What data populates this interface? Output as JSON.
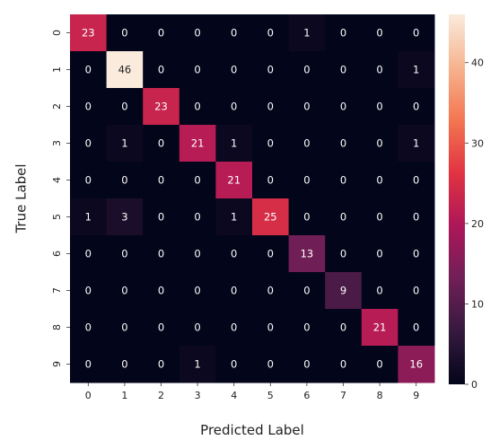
{
  "chart_data": {
    "type": "heatmap",
    "title": "",
    "xlabel": "Predicted Label",
    "ylabel": "True Label",
    "x_categories": [
      "0",
      "1",
      "2",
      "3",
      "4",
      "5",
      "6",
      "7",
      "8",
      "9"
    ],
    "y_categories": [
      "0",
      "1",
      "2",
      "3",
      "4",
      "5",
      "6",
      "7",
      "8",
      "9"
    ],
    "values": [
      [
        23,
        0,
        0,
        0,
        0,
        0,
        1,
        0,
        0,
        0
      ],
      [
        0,
        46,
        0,
        0,
        0,
        0,
        0,
        0,
        0,
        1
      ],
      [
        0,
        0,
        23,
        0,
        0,
        0,
        0,
        0,
        0,
        0
      ],
      [
        0,
        1,
        0,
        21,
        1,
        0,
        0,
        0,
        0,
        1
      ],
      [
        0,
        0,
        0,
        0,
        21,
        0,
        0,
        0,
        0,
        0
      ],
      [
        1,
        3,
        0,
        0,
        1,
        25,
        0,
        0,
        0,
        0
      ],
      [
        0,
        0,
        0,
        0,
        0,
        0,
        13,
        0,
        0,
        0
      ],
      [
        0,
        0,
        0,
        0,
        0,
        0,
        0,
        9,
        0,
        0
      ],
      [
        0,
        0,
        0,
        0,
        0,
        0,
        0,
        0,
        21,
        0
      ],
      [
        0,
        0,
        0,
        1,
        0,
        0,
        0,
        0,
        0,
        16
      ]
    ],
    "colorbar": {
      "range": [
        0,
        46
      ],
      "ticks": [
        "0",
        "10",
        "20",
        "30",
        "40"
      ],
      "colormap": [
        "#03051a",
        "#36193e",
        "#701f57",
        "#ad1759",
        "#e13342",
        "#f37651",
        "#f6b48f",
        "#faebdd"
      ]
    },
    "annotations": true
  }
}
